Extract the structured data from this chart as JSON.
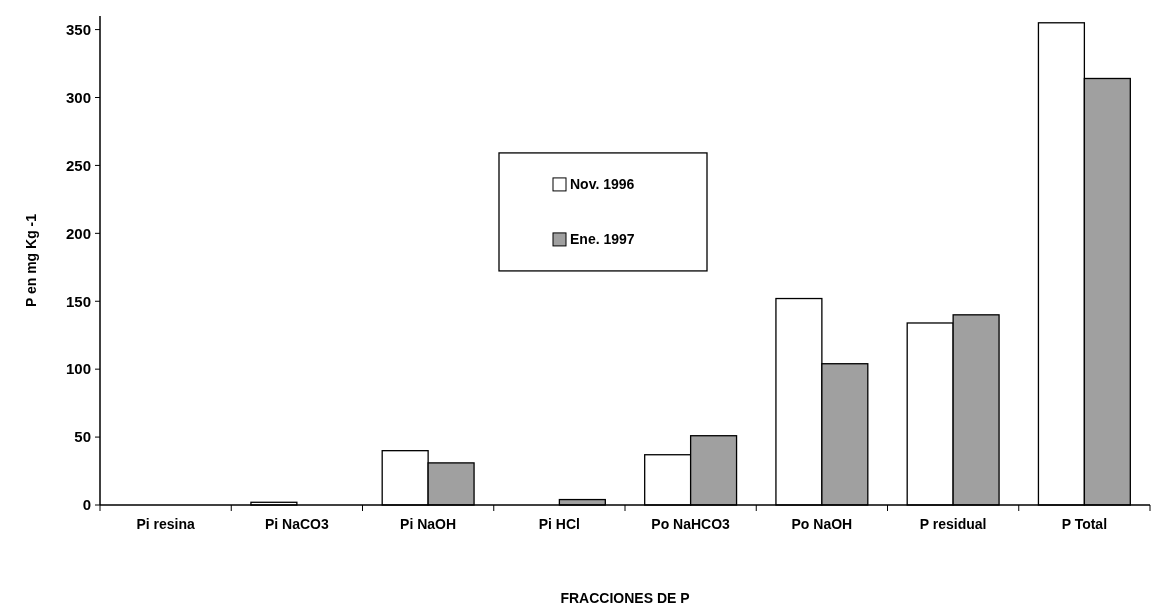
{
  "chart_data": {
    "type": "bar",
    "xlabel": "FRACCIONES DE P",
    "ylabel": "P en mg Kg -1",
    "categories": [
      "Pi resina",
      "Pi NaCO3",
      "Pi NaOH",
      "Pi HCl",
      "Po NaHCO3",
      "Po NaOH",
      "P residual",
      "P Total"
    ],
    "series": [
      {
        "name": "Nov. 1996",
        "color": "#ffffff",
        "values": [
          null,
          2,
          40,
          null,
          37,
          152,
          134,
          355
        ]
      },
      {
        "name": "Ene. 1997",
        "color": "#a0a0a0",
        "values": [
          null,
          null,
          31,
          4,
          51,
          104,
          140,
          314
        ]
      }
    ],
    "ylim": [
      0,
      360
    ],
    "yticks": [
      0,
      50,
      100,
      150,
      200,
      250,
      300,
      350
    ],
    "legend": "center",
    "grid": false
  }
}
